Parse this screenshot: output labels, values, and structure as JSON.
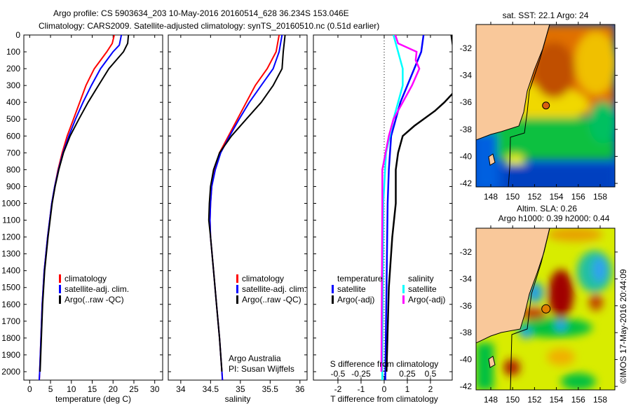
{
  "title": {
    "line1": "Argo profile: CS 5903634_203 10-May-2016 20160514_628 36.234S 153.046E",
    "line2": "Climatology: CARS2009. Satellite-adjusted climatology: synTS_20160510.nc (0.51d earlier)"
  },
  "colors": {
    "climatology": "#ff0000",
    "satellite": "#0000ff",
    "argo": "#000000",
    "s_satellite": "#00ffff",
    "s_argo": "#ff00ff",
    "land": "#f9c89a"
  },
  "chart_data": [
    {
      "type": "line",
      "name": "temperature",
      "xlabel": "temperature (deg C)",
      "ylabel": "depth",
      "xlim": [
        -1.4,
        31.9
      ],
      "ylim": [
        2050,
        0
      ],
      "xticks": [
        0,
        5,
        10,
        15,
        20,
        25,
        30
      ],
      "yticks": [
        0,
        100,
        200,
        300,
        400,
        500,
        600,
        700,
        800,
        900,
        1000,
        1100,
        1200,
        1300,
        1400,
        1500,
        1600,
        1700,
        1800,
        1900,
        2000
      ],
      "legend": [
        "climatology",
        "satellite-adj. clim.",
        "Argo(..raw -QC)"
      ],
      "legend_position": "lower-center",
      "series": [
        {
          "name": "climatology",
          "depth": [
            0,
            50,
            100,
            150,
            200,
            250,
            300,
            400,
            500,
            600,
            700,
            800,
            900,
            1000,
            1200,
            1400,
            1600,
            1800,
            2000,
            2050
          ],
          "values": [
            20.3,
            19.8,
            18.5,
            17,
            15.5,
            14.5,
            13.5,
            12,
            10.5,
            9,
            7.8,
            6.8,
            6,
            5.3,
            4.3,
            3.5,
            3,
            2.7,
            2.4,
            2.3
          ]
        },
        {
          "name": "satellite-adj. clim.",
          "depth": [
            0,
            60,
            100,
            200,
            300,
            400,
            500,
            600,
            700,
            800,
            900,
            1000,
            1200,
            1400,
            1600,
            1800,
            2000,
            2050
          ],
          "values": [
            22,
            21.5,
            20,
            17,
            14.8,
            12.8,
            11,
            9.4,
            8,
            6.9,
            6,
            5.3,
            4.3,
            3.5,
            3,
            2.7,
            2.4,
            2.3
          ]
        },
        {
          "name": "Argo(..raw -QC)",
          "depth": [
            0,
            50,
            100,
            200,
            300,
            400,
            500,
            600,
            700,
            800,
            900,
            1000,
            1200,
            1400,
            1600,
            1800,
            2000
          ],
          "values": [
            23.7,
            23.5,
            22.5,
            19,
            16.5,
            14,
            11.8,
            9.7,
            8.1,
            7,
            6.1,
            5.4,
            4.4,
            3.6,
            3.1,
            2.8,
            2.5
          ]
        }
      ]
    },
    {
      "type": "line",
      "name": "salinity",
      "xlabel": "salinity",
      "xlim": [
        33.79,
        36.12
      ],
      "ylim": [
        2050,
        0
      ],
      "xticks": [
        34,
        34.5,
        35,
        35.5,
        36
      ],
      "legend": [
        "climatology",
        "satellite-adj. clim.",
        "Argo(..raw -QC)"
      ],
      "annotations": [
        "Argo Australia",
        "PI: Susan Wijffels"
      ],
      "series": [
        {
          "name": "climatology",
          "depth": [
            0,
            100,
            200,
            300,
            400,
            500,
            600,
            700,
            800,
            900,
            1000,
            1100,
            1200,
            1400,
            1600,
            1800,
            2000,
            2050
          ],
          "values": [
            35.65,
            35.6,
            35.45,
            35.25,
            35.1,
            34.95,
            34.8,
            34.65,
            34.57,
            34.52,
            34.5,
            34.49,
            34.5,
            34.55,
            34.6,
            34.65,
            34.69,
            34.7
          ]
        },
        {
          "name": "satellite-adj. clim.",
          "depth": [
            0,
            100,
            200,
            300,
            400,
            500,
            600,
            700,
            800,
            900,
            1000,
            1100,
            1200,
            1400,
            1600,
            1800,
            2000,
            2050
          ],
          "values": [
            35.7,
            35.65,
            35.55,
            35.35,
            35.15,
            34.98,
            34.82,
            34.67,
            34.58,
            34.52,
            34.5,
            34.49,
            34.5,
            34.55,
            34.6,
            34.65,
            34.69,
            34.7
          ]
        },
        {
          "name": "Argo(..raw -QC)",
          "depth": [
            0,
            100,
            200,
            300,
            400,
            500,
            600,
            700,
            800,
            900,
            1000,
            1100,
            1200,
            1400,
            1600,
            1800,
            2000
          ],
          "values": [
            35.75,
            35.72,
            35.7,
            35.55,
            35.35,
            35.1,
            34.85,
            34.65,
            34.55,
            34.5,
            34.48,
            34.47,
            34.5,
            34.55,
            34.6,
            34.65,
            34.69
          ]
        }
      ]
    },
    {
      "type": "line",
      "name": "difference",
      "xlabel": "T difference from climatology",
      "xlabel2": "S difference from climatology",
      "xlim": [
        -3.06,
        2.94
      ],
      "xticks": [
        -2,
        -1,
        0,
        1,
        2
      ],
      "xticks_labels": [
        "-2",
        "-1",
        "0",
        "1",
        "2"
      ],
      "s_xlim": [
        -0.765,
        0.735
      ],
      "s_xticks": [
        -0.5,
        -0.25,
        0,
        0.25,
        0.5
      ],
      "s_xticks_labels": [
        "-0.5",
        "-0.25",
        "0",
        "0.25",
        "0.5"
      ],
      "ylim": [
        2050,
        0
      ],
      "legend_headers": [
        "temperature",
        "salinity"
      ],
      "legend": [
        "satellite",
        "Argo(-adj)",
        "satellite",
        "Argo(-adj)"
      ],
      "series": [
        {
          "name": "T satellite",
          "axis": "T",
          "depth": [
            0,
            100,
            200,
            300,
            400,
            500,
            600,
            800,
            1000,
            1500,
            2000,
            2050
          ],
          "values": [
            1.7,
            1.6,
            1.3,
            1.0,
            0.7,
            0.5,
            0.3,
            0.2,
            0.15,
            0.1,
            0.05,
            0.05
          ]
        },
        {
          "name": "T Argo(-adj)",
          "axis": "T",
          "depth": [
            0,
            100,
            200,
            300,
            350,
            400,
            450,
            500,
            540,
            600,
            700,
            800,
            1000,
            1200,
            1500,
            2000
          ],
          "values": [
            2.9,
            3.0,
            3.1,
            3.2,
            2.94,
            2.6,
            2.2,
            1.7,
            1.3,
            0.8,
            0.6,
            0.5,
            0.5,
            0.35,
            0.2,
            0.1
          ]
        },
        {
          "name": "S satellite",
          "axis": "S",
          "depth": [
            0,
            100,
            200,
            300,
            400,
            500,
            700,
            1000,
            2000,
            2050
          ],
          "values": [
            0.1,
            0.15,
            0.2,
            0.2,
            0.15,
            0.1,
            0.02,
            -0.01,
            -0.02,
            -0.02
          ]
        },
        {
          "name": "S Argo(-adj)",
          "axis": "S",
          "depth": [
            0,
            50,
            100,
            150,
            200,
            300,
            400,
            500,
            600,
            800,
            1000,
            2000
          ],
          "values": [
            0.12,
            0.15,
            0.35,
            0.34,
            0.38,
            0.3,
            0.2,
            0.1,
            0.05,
            -0.02,
            -0.02,
            -0.03
          ]
        }
      ]
    }
  ],
  "maps": {
    "sst": {
      "title": "sat. SST: 22.1 Argo: 24"
    },
    "sla": {
      "title1": "Altim. SLA: 0.26",
      "title2": "Argo h1000: 0.39 h2000: 0.44"
    },
    "lon_ticks": [
      "148",
      "150",
      "152",
      "154",
      "156",
      "158"
    ],
    "lat_ticks": [
      "-32",
      "-34",
      "-36",
      "-38",
      "-40",
      "-42"
    ],
    "argo_position": {
      "lon": 153.046,
      "lat": -36.234
    }
  },
  "credit": "©IMOS 17-May-2016 20:44:09"
}
